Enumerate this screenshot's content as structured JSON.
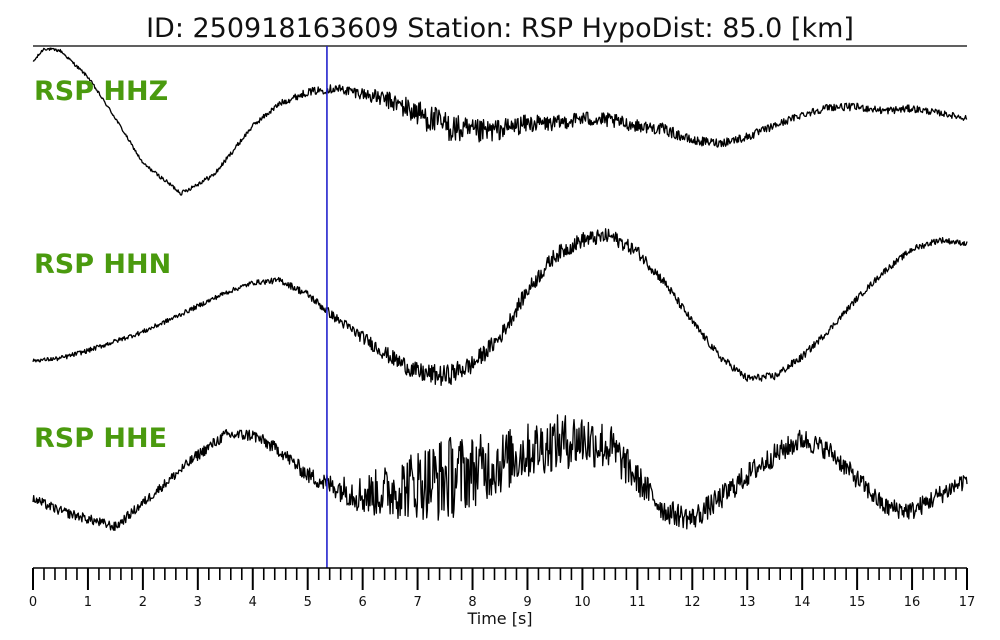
{
  "chart_data": {
    "type": "line",
    "title": "ID: 250918163609   Station: RSP   HypoDist:    85.0 [km]",
    "xlabel": "Time [s]",
    "xlim": [
      0,
      17
    ],
    "x_major_ticks": [
      "0",
      "1",
      "2",
      "3",
      "4",
      "5",
      "6",
      "7",
      "8",
      "9",
      "10",
      "11",
      "12",
      "13",
      "14",
      "15",
      "16",
      "17"
    ],
    "x_minor_step": 0.2,
    "pick_marker": {
      "x": 5.35,
      "color": "#2222cc"
    },
    "label_color": "#4a9a0e",
    "trace_color": "#000000",
    "series": [
      {
        "name": "RSP HHZ",
        "x": [
          0,
          0.2,
          0.5,
          1.0,
          1.5,
          2.0,
          2.7,
          3.3,
          4.0,
          4.5,
          5.0,
          5.5,
          6.0,
          6.5,
          7.0,
          7.5,
          8.0,
          8.5,
          9.0,
          9.5,
          10.0,
          10.5,
          11.0,
          11.5,
          12.0,
          12.5,
          13.0,
          13.5,
          14.0,
          14.5,
          15.0,
          15.5,
          16.0,
          16.5,
          17.0
        ],
        "y": [
          0.8,
          0.98,
          0.95,
          0.6,
          0.05,
          -0.55,
          -0.95,
          -0.7,
          -0.05,
          0.25,
          0.4,
          0.45,
          0.38,
          0.28,
          0.12,
          -0.05,
          -0.15,
          -0.1,
          -0.02,
          -0.02,
          0.05,
          0.02,
          -0.05,
          -0.1,
          -0.25,
          -0.28,
          -0.2,
          -0.05,
          0.1,
          0.2,
          0.2,
          0.15,
          0.18,
          0.12,
          0.05
        ],
        "noise": [
          0.02,
          0.02,
          0.02,
          0.02,
          0.02,
          0.02,
          0.03,
          0.03,
          0.03,
          0.04,
          0.05,
          0.06,
          0.08,
          0.12,
          0.18,
          0.2,
          0.18,
          0.14,
          0.12,
          0.1,
          0.1,
          0.1,
          0.08,
          0.08,
          0.06,
          0.06,
          0.06,
          0.05,
          0.05,
          0.05,
          0.05,
          0.05,
          0.05,
          0.04,
          0.04
        ]
      },
      {
        "name": "RSP HHN",
        "x": [
          0,
          0.5,
          1.0,
          1.5,
          2.0,
          2.5,
          3.0,
          3.5,
          4.0,
          4.5,
          5.0,
          5.5,
          6.0,
          6.5,
          7.0,
          7.5,
          8.0,
          8.5,
          9.0,
          9.5,
          10.0,
          10.5,
          11.0,
          11.5,
          12.0,
          12.5,
          13.0,
          13.5,
          14.0,
          14.5,
          15.0,
          15.5,
          16.0,
          16.5,
          17.0
        ],
        "y": [
          -0.65,
          -0.62,
          -0.52,
          -0.4,
          -0.28,
          -0.12,
          0.05,
          0.22,
          0.35,
          0.38,
          0.2,
          -0.1,
          -0.35,
          -0.6,
          -0.8,
          -0.85,
          -0.7,
          -0.35,
          0.25,
          0.7,
          0.9,
          0.95,
          0.75,
          0.35,
          -0.15,
          -0.6,
          -0.88,
          -0.85,
          -0.6,
          -0.25,
          0.15,
          0.5,
          0.78,
          0.9,
          0.85
        ],
        "noise": [
          0.02,
          0.03,
          0.03,
          0.03,
          0.03,
          0.03,
          0.03,
          0.03,
          0.03,
          0.04,
          0.05,
          0.06,
          0.08,
          0.1,
          0.12,
          0.14,
          0.12,
          0.1,
          0.1,
          0.1,
          0.1,
          0.1,
          0.08,
          0.06,
          0.05,
          0.05,
          0.05,
          0.05,
          0.05,
          0.04,
          0.04,
          0.04,
          0.04,
          0.04,
          0.03
        ]
      },
      {
        "name": "RSP HHE",
        "x": [
          0,
          0.5,
          1.0,
          1.5,
          2.0,
          2.5,
          3.0,
          3.5,
          4.0,
          4.5,
          5.0,
          5.5,
          6.0,
          6.5,
          7.0,
          7.5,
          8.0,
          8.5,
          9.0,
          9.5,
          10.0,
          10.5,
          11.0,
          11.5,
          12.0,
          12.5,
          13.0,
          13.5,
          14.0,
          14.5,
          15.0,
          15.5,
          16.0,
          16.5,
          17.0
        ],
        "y": [
          -0.2,
          -0.35,
          -0.45,
          -0.55,
          -0.25,
          0.05,
          0.35,
          0.6,
          0.6,
          0.4,
          0.1,
          -0.05,
          -0.15,
          -0.1,
          0.0,
          0.05,
          0.15,
          0.25,
          0.4,
          0.5,
          0.55,
          0.45,
          0.05,
          -0.35,
          -0.45,
          -0.2,
          0.1,
          0.35,
          0.55,
          0.4,
          0.05,
          -0.3,
          -0.35,
          -0.15,
          0.05
        ],
        "noise": [
          0.06,
          0.06,
          0.06,
          0.06,
          0.06,
          0.06,
          0.07,
          0.07,
          0.08,
          0.08,
          0.1,
          0.14,
          0.25,
          0.35,
          0.45,
          0.55,
          0.45,
          0.4,
          0.35,
          0.35,
          0.35,
          0.3,
          0.2,
          0.15,
          0.15,
          0.15,
          0.15,
          0.14,
          0.14,
          0.12,
          0.12,
          0.12,
          0.12,
          0.12,
          0.12
        ]
      }
    ]
  }
}
